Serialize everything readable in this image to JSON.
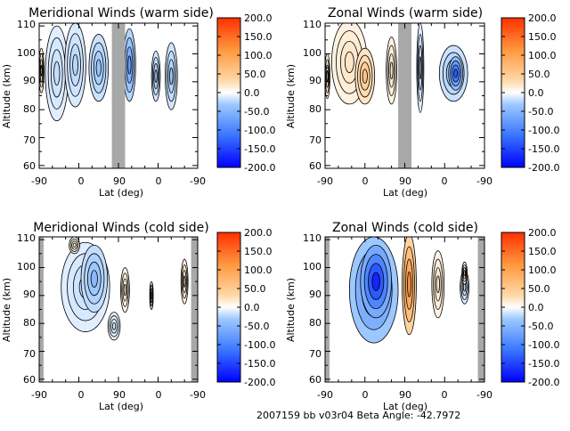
{
  "footer": "2007159 bb v03r04   Beta Angle: -42.7972",
  "colorbar": {
    "ticks": [
      "200.0",
      "150.0",
      "100.0",
      "50.0",
      "0.0",
      "-50.0",
      "-100.0",
      "-150.0",
      "-200.0"
    ],
    "range": [
      -200,
      200
    ],
    "colors": [
      "#0000ff",
      "#3c78ff",
      "#9cc8ff",
      "#ffffff",
      "#ffd8a8",
      "#ff9a40",
      "#ff3000"
    ]
  },
  "chart_data": [
    {
      "type": "heatmap",
      "title": "Meridional Winds (warm side)",
      "xlabel": "Lat (deg)",
      "ylabel": "Altitude (km)",
      "x_ticks": [
        "-90",
        "0",
        "90",
        "0",
        "-90"
      ],
      "y_ticks": [
        "60",
        "70",
        "80",
        "90",
        "100",
        "110"
      ],
      "ylim": [
        59,
        111
      ],
      "gaps": [
        [
          75,
          105
        ]
      ],
      "blobs": [
        {
          "x": -50,
          "y": 93,
          "rx": 26,
          "ry": 17,
          "v": -40
        },
        {
          "x": -8,
          "y": 96,
          "rx": 24,
          "ry": 15,
          "v": -50
        },
        {
          "x": 45,
          "y": 95,
          "rx": 22,
          "ry": 12,
          "v": -70
        },
        {
          "x": 115,
          "y": 96,
          "rx": 14,
          "ry": 13,
          "v": -100
        },
        {
          "x": 175,
          "y": 92,
          "rx": 10,
          "ry": 9,
          "v": -60
        },
        {
          "x": 210,
          "y": 92,
          "rx": 14,
          "ry": 12,
          "v": -60
        },
        {
          "x": -85,
          "y": 94,
          "rx": 6,
          "ry": 8,
          "v": 60
        }
      ]
    },
    {
      "type": "heatmap",
      "title": "Zonal Winds (warm side)",
      "xlabel": "Lat (deg)",
      "ylabel": "Altitude (km)",
      "x_ticks": [
        "-90",
        "0",
        "90",
        "0",
        "-90"
      ],
      "y_ticks": [
        "60",
        "70",
        "80",
        "90",
        "100",
        "110"
      ],
      "ylim": [
        59,
        111
      ],
      "gaps": [
        [
          75,
          105
        ]
      ],
      "blobs": [
        {
          "x": -35,
          "y": 97,
          "rx": 40,
          "ry": 15,
          "v": 45
        },
        {
          "x": 0,
          "y": 92,
          "rx": 22,
          "ry": 10,
          "v": 90
        },
        {
          "x": 60,
          "y": 94,
          "rx": 12,
          "ry": 12,
          "v": 40
        },
        {
          "x": 125,
          "y": 95,
          "rx": 8,
          "ry": 16,
          "v": -50
        },
        {
          "x": 200,
          "y": 93,
          "rx": 32,
          "ry": 10,
          "v": -70
        },
        {
          "x": 205,
          "y": 93,
          "rx": 16,
          "ry": 6,
          "v": -150
        },
        {
          "x": -85,
          "y": 92,
          "rx": 6,
          "ry": 8,
          "v": 60
        }
      ]
    },
    {
      "type": "heatmap",
      "title": "Meridional Winds (cold side)",
      "xlabel": "Lat (deg)",
      "ylabel": "Altitude (km)",
      "x_ticks": [
        "-90",
        "0",
        "90",
        "0",
        "-90"
      ],
      "y_ticks": [
        "60",
        "70",
        "80",
        "90",
        "100",
        "110"
      ],
      "ylim": [
        59,
        111
      ],
      "gaps": [
        [
          -90,
          -80
        ],
        [
          255,
          270
        ]
      ],
      "blobs": [
        {
          "x": 15,
          "y": 93,
          "rx": 55,
          "ry": 16,
          "v": -40
        },
        {
          "x": 35,
          "y": 96,
          "rx": 30,
          "ry": 12,
          "v": -80
        },
        {
          "x": 105,
          "y": 92,
          "rx": 10,
          "ry": 8,
          "v": 40
        },
        {
          "x": 165,
          "y": 90,
          "rx": 4,
          "ry": 5,
          "v": 40
        },
        {
          "x": 240,
          "y": 95,
          "rx": 8,
          "ry": 8,
          "v": 50
        },
        {
          "x": -10,
          "y": 108,
          "rx": 12,
          "ry": 3,
          "v": 30
        },
        {
          "x": 80,
          "y": 79,
          "rx": 14,
          "ry": 5,
          "v": -30
        }
      ]
    },
    {
      "type": "heatmap",
      "title": "Zonal Winds (cold side)",
      "xlabel": "Lat (deg)",
      "ylabel": "Altitude (km)",
      "x_ticks": [
        "-90",
        "0",
        "90",
        "0",
        "-90"
      ],
      "y_ticks": [
        "60",
        "70",
        "80",
        "90",
        "100",
        "110"
      ],
      "ylim": [
        59,
        111
      ],
      "gaps": [
        [
          -90,
          -80
        ],
        [
          255,
          270
        ]
      ],
      "blobs": [
        {
          "x": 20,
          "y": 92,
          "rx": 55,
          "ry": 19,
          "v": -130
        },
        {
          "x": 25,
          "y": 95,
          "rx": 35,
          "ry": 13,
          "v": -180
        },
        {
          "x": 100,
          "y": 94,
          "rx": 16,
          "ry": 18,
          "v": 140
        },
        {
          "x": 165,
          "y": 94,
          "rx": 14,
          "ry": 12,
          "v": 40
        },
        {
          "x": 225,
          "y": 93,
          "rx": 10,
          "ry": 6,
          "v": -40
        },
        {
          "x": 225,
          "y": 98,
          "rx": 6,
          "ry": 4,
          "v": 40
        }
      ]
    }
  ]
}
